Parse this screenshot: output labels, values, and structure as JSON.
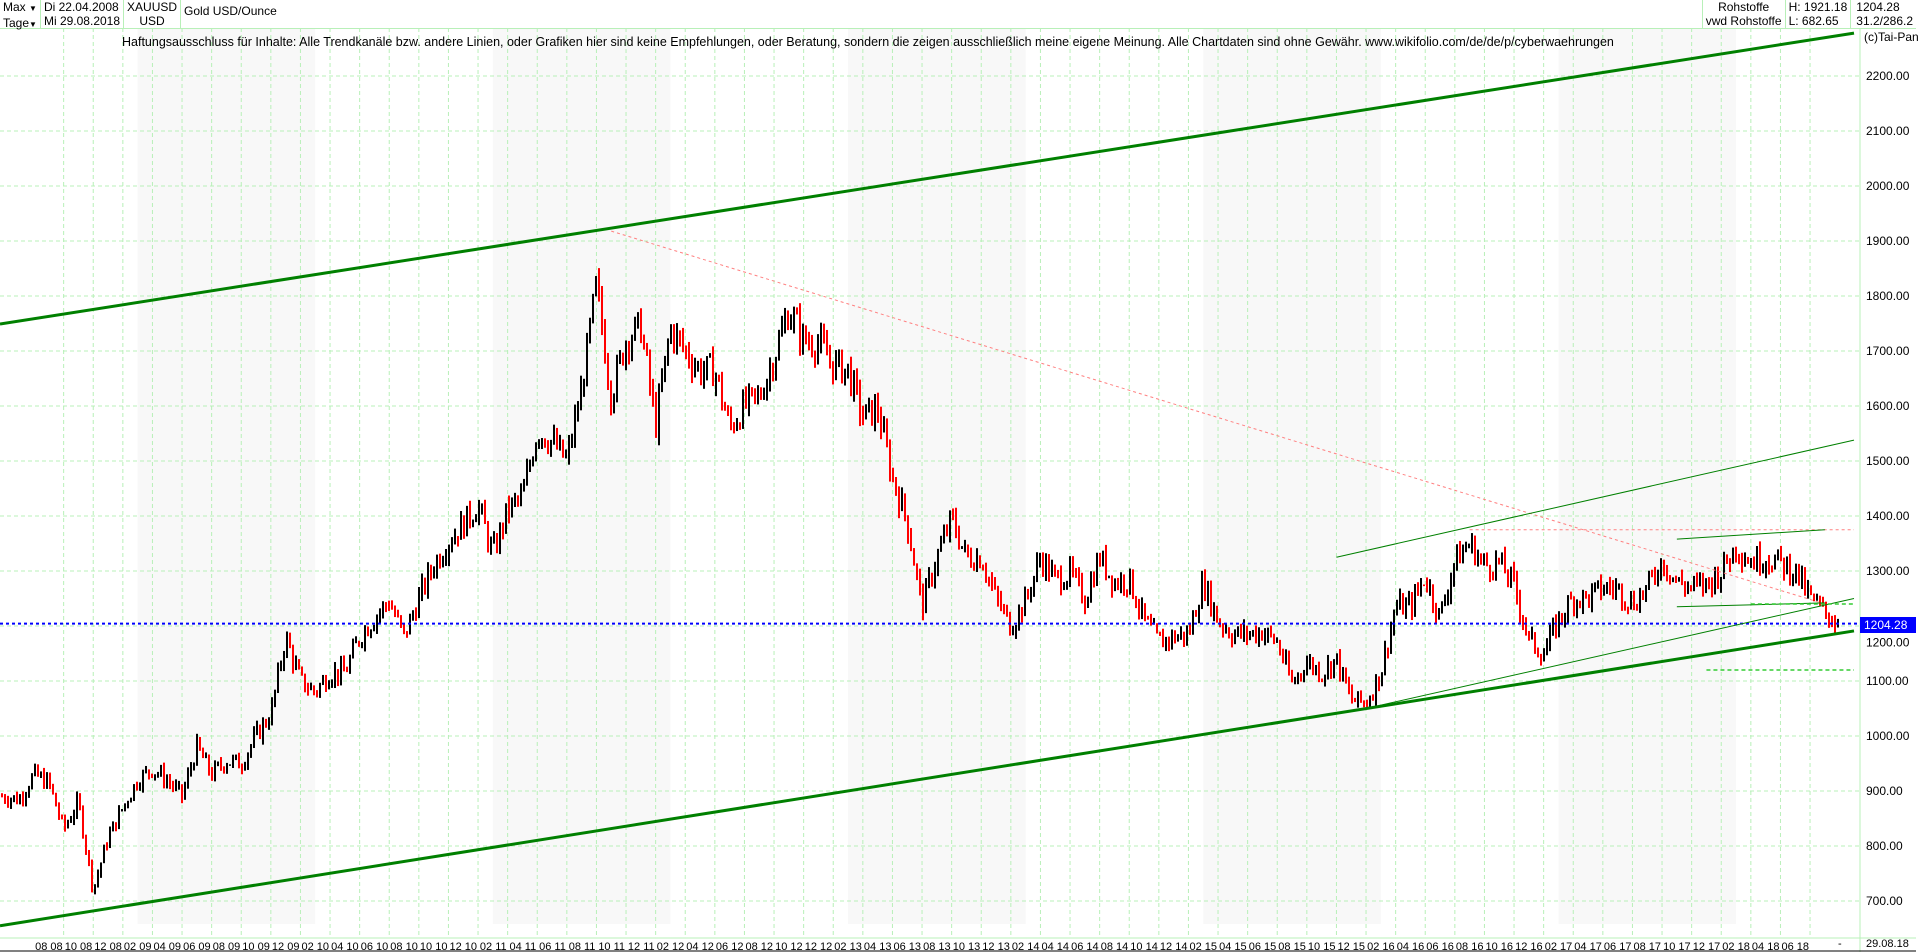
{
  "header": {
    "range_label": "Max",
    "period_label": "Tage",
    "start_date": "Di 22.04.2008",
    "end_date": "Mi 29.08.2018",
    "symbol": "XAUUSD",
    "currency": "USD",
    "instrument_name": "Gold USD/Ounce",
    "category": "Rohstoffe",
    "source": "vwd Rohstoffe",
    "high": "H: 1921.18",
    "low": "L: 682.65",
    "last": "1204.28",
    "ratio": "31.2/286.2"
  },
  "disclaimer": "Haftungsausschluss für Inhalte: Alle Trendkanäle bzw. andere Linien, oder Grafiken hier sind keine Empfehlungen, oder Beratung, sondern die zeigen ausschließlich meine eigene Meinung. Alle Chartdaten sind ohne Gewähr.  www.wikifolio.com/de/de/p/cyberwaehrungen",
  "copyright": "(c)Tai-Pan",
  "end_axis_label": "29.08.18",
  "end_axis_dash": "-",
  "colors": {
    "up": "#000000",
    "down": "#ff0000",
    "trend": "#008000",
    "grid": "#b8f0b8",
    "current_price": "#0000ff",
    "resistance": "#ff8080"
  },
  "chart_data": {
    "type": "candlestick",
    "title": "Gold USD/Ounce",
    "ylim": [
      650,
      2290
    ],
    "yticks": [
      "700.00",
      "800.00",
      "900.00",
      "1000.00",
      "1100.00",
      "1200.00",
      "1300.00",
      "1400.00",
      "1500.00",
      "1600.00",
      "1700.00",
      "1800.00",
      "1900.00",
      "2000.00",
      "2100.00",
      "2200.00"
    ],
    "xlim": [
      "2008-04-22",
      "2018-08-29"
    ],
    "xticks": [
      "08 08",
      "10 08",
      "12 08",
      "02 09",
      "04 09",
      "06 09",
      "08 09",
      "10 09",
      "12 09",
      "02 10",
      "04 10",
      "06 10",
      "08 10",
      "10 10",
      "12 10",
      "02 11",
      "04 11",
      "06 11",
      "08 11",
      "10 11",
      "12 11",
      "02 12",
      "04 12",
      "06 12",
      "08 12",
      "10 12",
      "12 12",
      "02 13",
      "04 13",
      "06 13",
      "08 13",
      "10 13",
      "12 13",
      "02 14",
      "04 14",
      "06 14",
      "08 14",
      "10 14",
      "12 14",
      "02 15",
      "04 15",
      "06 15",
      "08 15",
      "10 15",
      "12 15",
      "02 16",
      "04 16",
      "06 16",
      "08 16",
      "10 16",
      "12 16",
      "02 17",
      "04 17",
      "06 17",
      "08 17",
      "10 17",
      "12 17",
      "02 18",
      "04 18",
      "06 18"
    ],
    "grid": true,
    "current_price": 1204.28,
    "high": 1921.18,
    "low": 682.65,
    "monthly_close": {
      "start": "2008-04",
      "values": [
        890,
        885,
        930,
        915,
        830,
        880,
        720,
        815,
        870,
        920,
        940,
        920,
        890,
        980,
        930,
        955,
        950,
        1000,
        1040,
        1180,
        1100,
        1080,
        1115,
        1115,
        1180,
        1215,
        1245,
        1180,
        1250,
        1310,
        1355,
        1385,
        1420,
        1330,
        1410,
        1435,
        1555,
        1535,
        1500,
        1630,
        1820,
        1620,
        1720,
        1745,
        1565,
        1740,
        1700,
        1665,
        1665,
        1560,
        1600,
        1615,
        1690,
        1775,
        1720,
        1715,
        1675,
        1665,
        1580,
        1595,
        1470,
        1390,
        1235,
        1325,
        1395,
        1325,
        1325,
        1250,
        1200,
        1245,
        1325,
        1285,
        1295,
        1250,
        1325,
        1280,
        1285,
        1210,
        1170,
        1180,
        1185,
        1280,
        1210,
        1185,
        1185,
        1190,
        1170,
        1095,
        1135,
        1115,
        1140,
        1065,
        1060,
        1115,
        1235,
        1235,
        1290,
        1215,
        1320,
        1350,
        1310,
        1315,
        1275,
        1175,
        1150,
        1210,
        1250,
        1250,
        1270,
        1268,
        1242,
        1268,
        1320,
        1280,
        1270,
        1275,
        1300,
        1345,
        1318,
        1325,
        1315,
        1300,
        1250,
        1225,
        1204
      ]
    },
    "trendlines": [
      {
        "style": "thick-green",
        "from": [
          "2008-04",
          1749
        ],
        "to": [
          "2018-09",
          2278
        ]
      },
      {
        "style": "thick-green",
        "from": [
          "2008-04",
          655
        ],
        "to": [
          "2018-09",
          1191
        ]
      },
      {
        "style": "red-dotted",
        "from": [
          "2011-09",
          1918
        ],
        "to": [
          "2018-07",
          1240
        ]
      },
      {
        "style": "red-dotted",
        "from": [
          "2016-07",
          1375
        ],
        "to": [
          "2018-09",
          1375
        ]
      },
      {
        "style": "thin-green",
        "from": [
          "2015-10",
          1325
        ],
        "to": [
          "2018-09",
          1538
        ]
      },
      {
        "style": "thin-green",
        "from": [
          "2015-12",
          1050
        ],
        "to": [
          "2018-09",
          1250
        ]
      },
      {
        "style": "thin-green",
        "from": [
          "2017-09",
          1358
        ],
        "to": [
          "2018-07",
          1375
        ]
      },
      {
        "style": "thin-green",
        "from": [
          "2017-09",
          1235
        ],
        "to": [
          "2018-07",
          1242
        ]
      },
      {
        "style": "green-dashed",
        "from": [
          "2018-02",
          1240
        ],
        "to": [
          "2018-09",
          1240
        ]
      },
      {
        "style": "green-dashed",
        "from": [
          "2017-11",
          1120
        ],
        "to": [
          "2018-09",
          1120
        ]
      }
    ]
  }
}
